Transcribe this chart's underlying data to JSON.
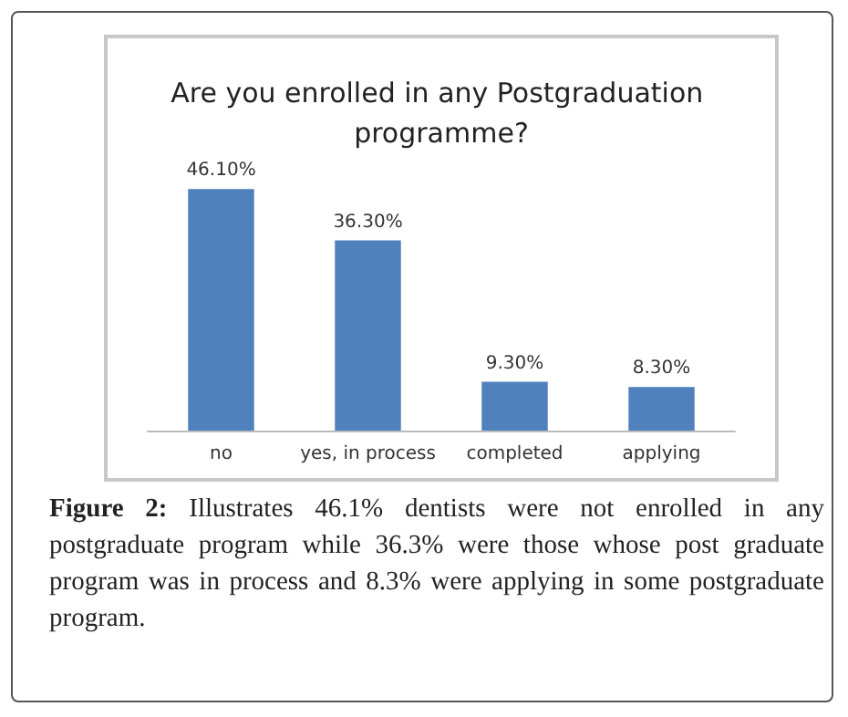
{
  "chart_data": {
    "type": "bar",
    "title": "Are you enrolled in any Postgraduation programme?",
    "categories": [
      "no",
      "yes, in process",
      "completed",
      "applying"
    ],
    "values": [
      46.1,
      36.3,
      9.3,
      8.3
    ],
    "value_labels": [
      "46.10%",
      "36.30%",
      "9.30%",
      "8.30%"
    ],
    "color": "#4f81bd",
    "annotations": [
      "Figure 2: Illustrates 46.1% dentists were not enrolled in any postgraduate program while 36.3% were those whose post graduate program was in process and 8.3% were applying in some postgraduate program."
    ]
  }
}
